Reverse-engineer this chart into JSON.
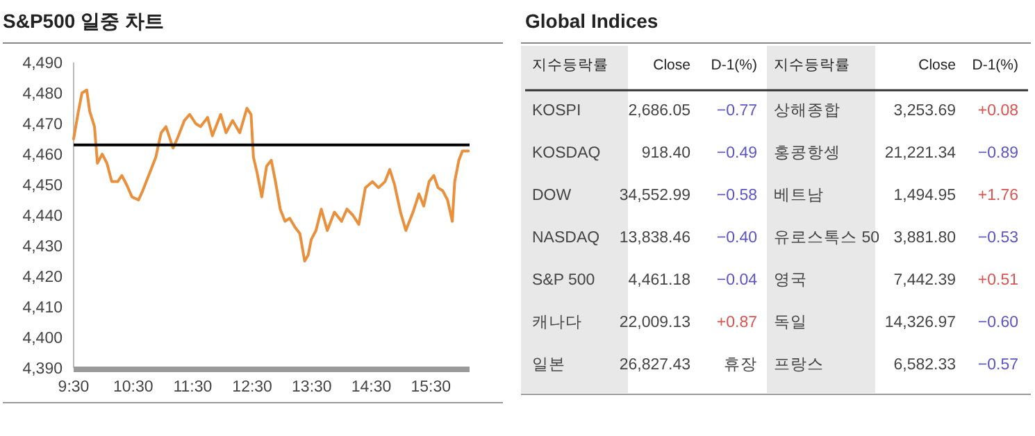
{
  "chart_data": [
    {
      "type": "line",
      "title": "S&P500 일중 차트",
      "series": [
        {
          "color": "#e8903c",
          "x": [
            9.5,
            9.58,
            9.64,
            9.72,
            9.77,
            9.85,
            9.9,
            9.98,
            10.06,
            10.14,
            10.24,
            10.31,
            10.39,
            10.48,
            10.59,
            10.66,
            10.78,
            10.88,
            10.97,
            11.05,
            11.17,
            11.24,
            11.36,
            11.45,
            11.55,
            11.63,
            11.75,
            11.83,
            11.97,
            12.06,
            12.17,
            12.29,
            12.41,
            12.48,
            12.52,
            12.58,
            12.66,
            12.74,
            12.82,
            12.89,
            12.97,
            13.05,
            13.13,
            13.22,
            13.3,
            13.38,
            13.44,
            13.49,
            13.57,
            13.66,
            13.76,
            13.88,
            14.0,
            14.09,
            14.19,
            14.29,
            14.4,
            14.52,
            14.62,
            14.73,
            14.81,
            14.89,
            14.99,
            15.08,
            15.2,
            15.3,
            15.38,
            15.47,
            15.55,
            15.62,
            15.7,
            15.78,
            15.86,
            15.9,
            15.97,
            16.03,
            16.13
          ],
          "values": [
            4465,
            4474,
            4480,
            4481,
            4474,
            4469,
            4457,
            4460,
            4457,
            4451,
            4451,
            4453,
            4450,
            4446,
            4445,
            4448,
            4454,
            4459,
            4467,
            4469,
            4462,
            4465,
            4471,
            4473,
            4470,
            4469,
            4472,
            4466,
            4473,
            4467,
            4471,
            4467,
            4475,
            4473,
            4459,
            4454,
            4446,
            4456,
            4458,
            4451,
            4442,
            4438,
            4439,
            4436,
            4434,
            4425,
            4427,
            4432,
            4435,
            4442,
            4435,
            4441,
            4438,
            4442,
            4440,
            4437,
            4449,
            4451,
            4449,
            4451,
            4455,
            4450,
            4441,
            4435,
            4441,
            4447,
            4443,
            4451,
            4453,
            4449,
            4448,
            4445,
            4438,
            4451,
            4458,
            4461,
            4461
          ]
        }
      ],
      "xlim": [
        9.5,
        16.15
      ],
      "xticks": [
        {
          "value": 9.5,
          "label": "9:30"
        },
        {
          "value": 10.5,
          "label": "10:30"
        },
        {
          "value": 11.5,
          "label": "11:30"
        },
        {
          "value": 12.5,
          "label": "12:30"
        },
        {
          "value": 13.5,
          "label": "13:30"
        },
        {
          "value": 14.5,
          "label": "14:30"
        },
        {
          "value": 15.5,
          "label": "15:30"
        }
      ],
      "ylim": [
        4390,
        4490
      ],
      "yticks": [
        {
          "value": 4390,
          "label": "4,390"
        },
        {
          "value": 4400,
          "label": "4,400"
        },
        {
          "value": 4410,
          "label": "4,410"
        },
        {
          "value": 4420,
          "label": "4,420"
        },
        {
          "value": 4430,
          "label": "4,430"
        },
        {
          "value": 4440,
          "label": "4,440"
        },
        {
          "value": 4450,
          "label": "4,450"
        },
        {
          "value": 4460,
          "label": "4,460"
        },
        {
          "value": 4470,
          "label": "4,470"
        },
        {
          "value": 4480,
          "label": "4,480"
        },
        {
          "value": 4490,
          "label": "4,490"
        }
      ],
      "ref_lines": [
        {
          "axis": "y",
          "value": 4463,
          "color": "#000000"
        }
      ],
      "grid": false
    },
    {
      "type": "other",
      "title": "Global Indices",
      "annotations": [
        "지수등락률",
        "Close",
        "D-1(%)",
        "지수등락률",
        "Close",
        "D-1(%)",
        "KOSPI",
        "2,686.05",
        "−0.77",
        "상해종합",
        "3,253.69",
        "+0.08",
        "KOSDAQ",
        "918.40",
        "−0.49",
        "홍콩항셍",
        "21,221.34",
        "−0.89",
        "DOW",
        "34,552.99",
        "−0.58",
        "베트남",
        "1,494.95",
        "+1.76",
        "NASDAQ",
        "13,838.46",
        "−0.40",
        "유로스톡스 50",
        "3,881.80",
        "−0.53",
        "S&P 500",
        "4,461.18",
        "−0.04",
        "영국",
        "7,442.39",
        "+0.51",
        "캐나다",
        "22,009.13",
        "+0.87",
        "독일",
        "14,326.97",
        "−0.60",
        "일본",
        "26,827.43",
        "휴장",
        "프랑스",
        "6,582.33",
        "−0.57"
      ],
      "colors": [
        "#222222",
        "#222222",
        "#222222",
        "#222222",
        "#222222",
        "#222222",
        "#444444",
        "#444444",
        "#5b54c8",
        "#444444",
        "#444444",
        "#d9534f",
        "#444444",
        "#444444",
        "#5b54c8",
        "#444444",
        "#444444",
        "#5b54c8",
        "#444444",
        "#444444",
        "#5b54c8",
        "#444444",
        "#444444",
        "#d9534f",
        "#444444",
        "#444444",
        "#5b54c8",
        "#444444",
        "#444444",
        "#5b54c8",
        "#444444",
        "#444444",
        "#5b54c8",
        "#444444",
        "#444444",
        "#d9534f",
        "#444444",
        "#444444",
        "#d9534f",
        "#444444",
        "#444444",
        "#5b54c8",
        "#444444",
        "#444444",
        "#444444",
        "#444444",
        "#444444",
        "#5b54c8"
      ]
    }
  ]
}
